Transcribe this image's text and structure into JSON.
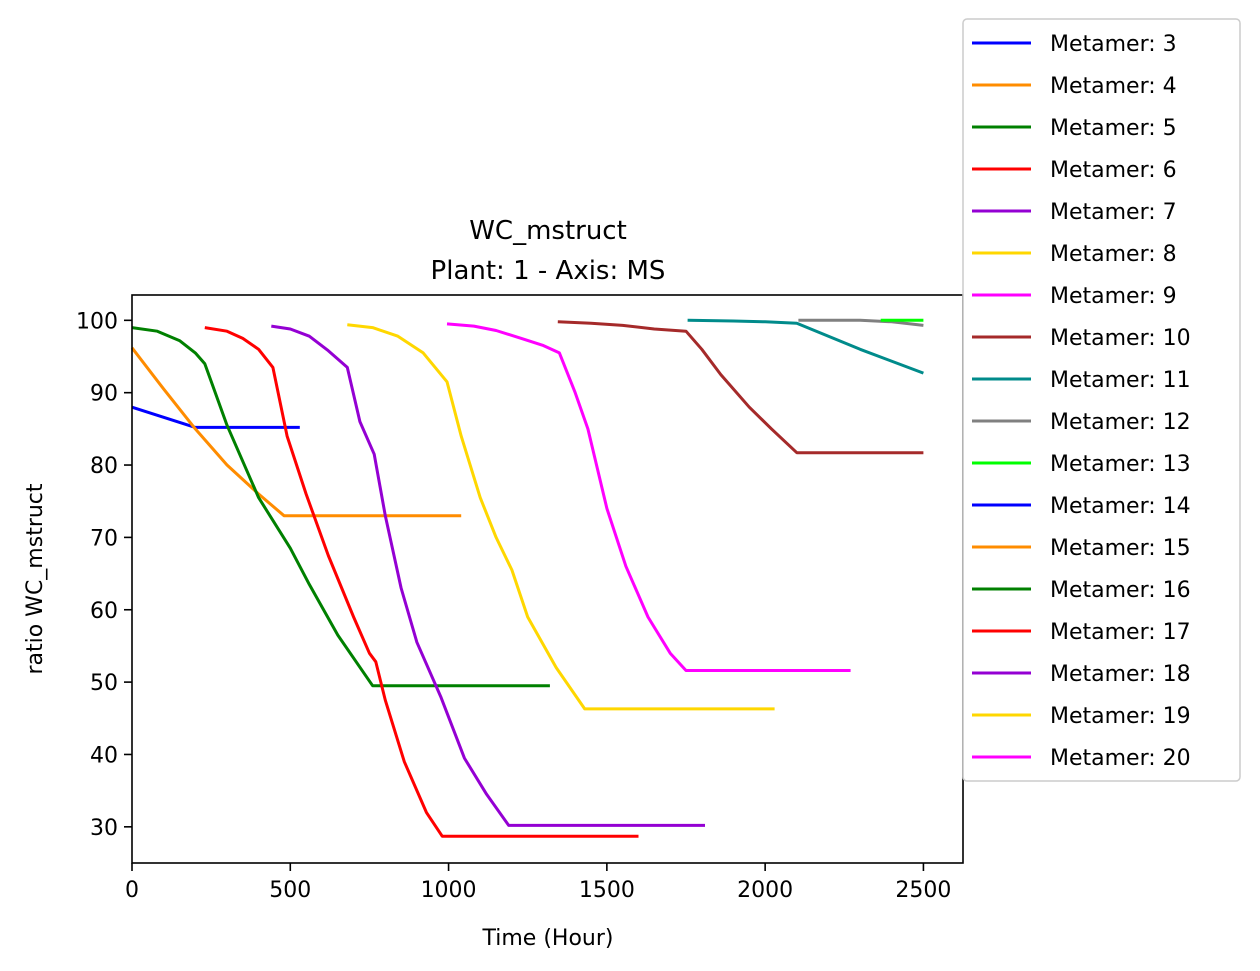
{
  "chart_data": {
    "type": "line",
    "title": "WC_mstruct",
    "subtitle": "Plant: 1 - Axis: MS",
    "xlabel": "Time (Hour)",
    "ylabel": "ratio WC_mstruct",
    "xlim": [
      0,
      2625
    ],
    "ylim": [
      25,
      103.5
    ],
    "xticks": [
      0,
      500,
      1000,
      1500,
      2000,
      2500
    ],
    "yticks": [
      30,
      40,
      50,
      60,
      70,
      80,
      90,
      100
    ],
    "grid": false,
    "legend_placement": "right, outside plot",
    "series": [
      {
        "name": "Metamer: 3",
        "color": "#0000ff",
        "points": [
          [
            0,
            88.0
          ],
          [
            200,
            85.2
          ],
          [
            530,
            85.2
          ]
        ]
      },
      {
        "name": "Metamer: 4",
        "color": "#ff8c00",
        "points": [
          [
            0,
            96.2
          ],
          [
            100,
            90.5
          ],
          [
            200,
            85.0
          ],
          [
            300,
            80.0
          ],
          [
            400,
            76.0
          ],
          [
            480,
            73.0
          ],
          [
            1040,
            73.0
          ]
        ]
      },
      {
        "name": "Metamer: 5",
        "color": "#008000",
        "points": [
          [
            0,
            99.0
          ],
          [
            80,
            98.5
          ],
          [
            150,
            97.2
          ],
          [
            200,
            95.5
          ],
          [
            230,
            94.0
          ],
          [
            300,
            85.5
          ],
          [
            400,
            75.5
          ],
          [
            500,
            68.5
          ],
          [
            560,
            63.5
          ],
          [
            650,
            56.5
          ],
          [
            760,
            49.5
          ],
          [
            1320,
            49.5
          ]
        ]
      },
      {
        "name": "Metamer: 6",
        "color": "#ff0000",
        "points": [
          [
            230,
            99.0
          ],
          [
            300,
            98.5
          ],
          [
            350,
            97.5
          ],
          [
            400,
            96.0
          ],
          [
            445,
            93.5
          ],
          [
            490,
            84.0
          ],
          [
            550,
            76.0
          ],
          [
            620,
            67.5
          ],
          [
            700,
            59.0
          ],
          [
            750,
            54.0
          ],
          [
            770,
            52.8
          ],
          [
            800,
            47.5
          ],
          [
            860,
            39.0
          ],
          [
            930,
            32.0
          ],
          [
            980,
            28.7
          ],
          [
            1600,
            28.7
          ]
        ]
      },
      {
        "name": "Metamer: 7",
        "color": "#9400d3",
        "points": [
          [
            440,
            99.2
          ],
          [
            500,
            98.8
          ],
          [
            560,
            97.8
          ],
          [
            620,
            95.8
          ],
          [
            680,
            93.5
          ],
          [
            720,
            86.0
          ],
          [
            765,
            81.5
          ],
          [
            800,
            73.0
          ],
          [
            850,
            63.0
          ],
          [
            900,
            55.5
          ],
          [
            975,
            48.0
          ],
          [
            1050,
            39.5
          ],
          [
            1120,
            34.5
          ],
          [
            1190,
            30.2
          ],
          [
            1810,
            30.2
          ]
        ]
      },
      {
        "name": "Metamer: 8",
        "color": "#ffd700",
        "points": [
          [
            680,
            99.4
          ],
          [
            760,
            99.0
          ],
          [
            840,
            97.8
          ],
          [
            920,
            95.5
          ],
          [
            995,
            91.5
          ],
          [
            1040,
            84.0
          ],
          [
            1100,
            75.5
          ],
          [
            1150,
            70.0
          ],
          [
            1200,
            65.5
          ],
          [
            1250,
            59.0
          ],
          [
            1340,
            52.0
          ],
          [
            1430,
            46.3
          ],
          [
            2030,
            46.3
          ]
        ]
      },
      {
        "name": "Metamer: 9",
        "color": "#ff00ff",
        "points": [
          [
            995,
            99.5
          ],
          [
            1080,
            99.2
          ],
          [
            1150,
            98.6
          ],
          [
            1230,
            97.5
          ],
          [
            1300,
            96.5
          ],
          [
            1350,
            95.5
          ],
          [
            1400,
            90.0
          ],
          [
            1440,
            85.0
          ],
          [
            1500,
            74.0
          ],
          [
            1560,
            66.0
          ],
          [
            1630,
            59.0
          ],
          [
            1700,
            54.0
          ],
          [
            1750,
            51.6
          ],
          [
            2270,
            51.6
          ]
        ]
      },
      {
        "name": "Metamer: 10",
        "color": "#a52a2a",
        "points": [
          [
            1345,
            99.8
          ],
          [
            1450,
            99.6
          ],
          [
            1550,
            99.3
          ],
          [
            1650,
            98.8
          ],
          [
            1750,
            98.5
          ],
          [
            1800,
            96.0
          ],
          [
            1860,
            92.5
          ],
          [
            1950,
            88.0
          ],
          [
            2020,
            85.0
          ],
          [
            2100,
            81.7
          ],
          [
            2500,
            81.7
          ]
        ]
      },
      {
        "name": "Metamer: 11",
        "color": "#008b8b",
        "points": [
          [
            1755,
            100.0
          ],
          [
            1900,
            99.9
          ],
          [
            2000,
            99.8
          ],
          [
            2100,
            99.6
          ],
          [
            2300,
            96.0
          ],
          [
            2500,
            92.7
          ]
        ]
      },
      {
        "name": "Metamer: 12",
        "color": "#808080",
        "points": [
          [
            2105,
            100.0
          ],
          [
            2300,
            100.0
          ],
          [
            2400,
            99.8
          ],
          [
            2500,
            99.3
          ]
        ]
      },
      {
        "name": "Metamer: 13",
        "color": "#00ff00",
        "points": [
          [
            2365,
            100.0
          ],
          [
            2500,
            100.0
          ]
        ]
      },
      {
        "name": "Metamer: 14",
        "color": "#0000ff",
        "points": []
      },
      {
        "name": "Metamer: 15",
        "color": "#ff8c00",
        "points": []
      },
      {
        "name": "Metamer: 16",
        "color": "#008000",
        "points": []
      },
      {
        "name": "Metamer: 17",
        "color": "#ff0000",
        "points": []
      },
      {
        "name": "Metamer: 18",
        "color": "#9400d3",
        "points": []
      },
      {
        "name": "Metamer: 19",
        "color": "#ffd700",
        "points": []
      },
      {
        "name": "Metamer: 20",
        "color": "#ff00ff",
        "points": []
      }
    ]
  }
}
